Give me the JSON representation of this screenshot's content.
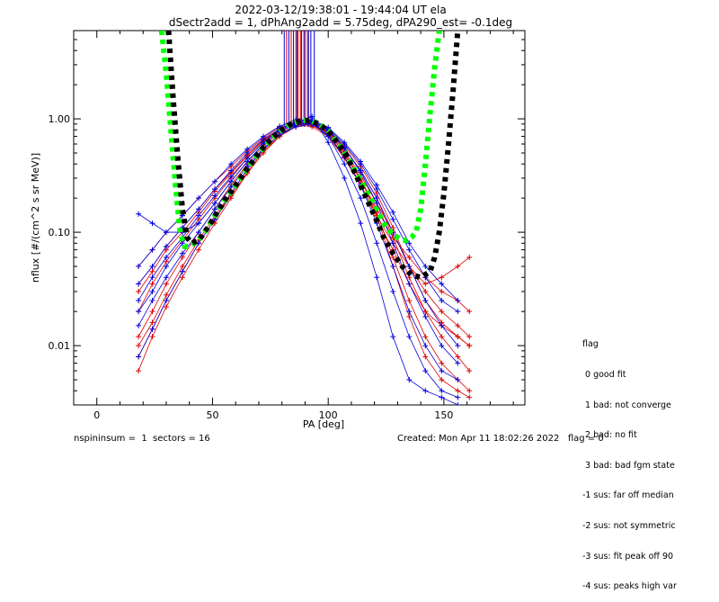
{
  "chart_data": {
    "type": "scatter",
    "title": "2022-03-12/19:38:01 - 19:44:04 UT ela",
    "subtitle": "dSectr2add = 1, dPhAng2add = 5.75deg, dPA290_est=  -0.1deg",
    "xlabel": "PA [deg]",
    "ylabel": "nflux [#/(cm^2 s sr MeV)]",
    "xlim": [
      -10,
      185
    ],
    "ylim": [
      0.003,
      6
    ],
    "yscale": "log",
    "x_ticks": [
      "0",
      "50",
      "100",
      "150"
    ],
    "y_ticks": [
      "0.01",
      "0.10",
      "1.00"
    ],
    "grid": false,
    "colors": {
      "red": "#dd0000",
      "blue": "#0000dd",
      "green": "#00ff00",
      "black": "#000000"
    },
    "series": [
      {
        "color": "red",
        "style": "lines+plus",
        "x": [
          18,
          24,
          30,
          37,
          44,
          51,
          58,
          65,
          72,
          79,
          86,
          93,
          100,
          107,
          114,
          121,
          128,
          135,
          142,
          149,
          156,
          161
        ],
        "traces": [
          [
            0.006,
            0.012,
            0.022,
            0.04,
            0.07,
            0.12,
            0.2,
            0.33,
            0.5,
            0.7,
            0.85,
            0.9,
            0.75,
            0.5,
            0.3,
            0.15,
            0.06,
            0.025,
            0.012,
            0.007,
            0.005,
            0.004
          ],
          [
            0.012,
            0.02,
            0.035,
            0.06,
            0.1,
            0.16,
            0.26,
            0.4,
            0.58,
            0.75,
            0.9,
            0.95,
            0.8,
            0.55,
            0.35,
            0.2,
            0.09,
            0.04,
            0.02,
            0.012,
            0.008,
            0.006
          ],
          [
            0.02,
            0.035,
            0.055,
            0.085,
            0.13,
            0.2,
            0.3,
            0.45,
            0.62,
            0.8,
            0.92,
            0.92,
            0.78,
            0.52,
            0.32,
            0.18,
            0.1,
            0.05,
            0.03,
            0.02,
            0.015,
            0.012
          ],
          [
            0.035,
            0.05,
            0.075,
            0.11,
            0.16,
            0.24,
            0.34,
            0.48,
            0.65,
            0.82,
            0.95,
            0.88,
            0.72,
            0.48,
            0.29,
            0.16,
            0.09,
            0.06,
            0.04,
            0.03,
            0.025,
            0.02
          ],
          [
            0.05,
            0.07,
            0.1,
            0.14,
            0.2,
            0.28,
            0.38,
            0.52,
            0.68,
            0.85,
            0.98,
            0.85,
            0.7,
            0.45,
            0.26,
            0.14,
            0.08,
            0.05,
            0.035,
            0.04,
            0.05,
            0.06
          ],
          [
            0.01,
            0.016,
            0.028,
            0.05,
            0.085,
            0.14,
            0.22,
            0.36,
            0.54,
            0.72,
            0.88,
            0.9,
            0.76,
            0.5,
            0.3,
            0.14,
            0.05,
            0.018,
            0.008,
            0.005,
            0.004,
            0.0035
          ],
          [
            0.03,
            0.045,
            0.07,
            0.1,
            0.15,
            0.23,
            0.33,
            0.47,
            0.64,
            0.8,
            0.93,
            0.91,
            0.74,
            0.46,
            0.27,
            0.13,
            0.07,
            0.035,
            0.02,
            0.015,
            0.012,
            0.01
          ],
          [
            0.008,
            0.014,
            0.025,
            0.045,
            0.08,
            0.13,
            0.21,
            0.34,
            0.52,
            0.7,
            0.86,
            0.93,
            0.8,
            0.58,
            0.38,
            0.22,
            0.11,
            0.05,
            0.025,
            0.016,
            0.012,
            0.01
          ]
        ]
      },
      {
        "color": "blue",
        "style": "lines+plus",
        "x": [
          18,
          24,
          30,
          37,
          44,
          51,
          58,
          65,
          72,
          79,
          86,
          93,
          100,
          107,
          114,
          121,
          128,
          135,
          142,
          149,
          156
        ],
        "traces": [
          [
            0.015,
            0.025,
            0.04,
            0.065,
            0.1,
            0.16,
            0.25,
            0.38,
            0.55,
            0.72,
            0.85,
            0.9,
            0.78,
            0.55,
            0.35,
            0.2,
            0.1,
            0.05,
            0.025,
            0.015,
            0.01
          ],
          [
            0.02,
            0.03,
            0.05,
            0.08,
            0.12,
            0.18,
            0.28,
            0.42,
            0.6,
            0.78,
            0.9,
            0.95,
            0.8,
            0.56,
            0.34,
            0.18,
            0.08,
            0.035,
            0.018,
            0.01,
            0.007
          ],
          [
            0.008,
            0.014,
            0.025,
            0.045,
            0.08,
            0.13,
            0.22,
            0.36,
            0.54,
            0.72,
            0.88,
            0.92,
            0.7,
            0.4,
            0.2,
            0.08,
            0.03,
            0.012,
            0.006,
            0.004,
            0.0035
          ],
          [
            0.035,
            0.05,
            0.075,
            0.11,
            0.16,
            0.24,
            0.35,
            0.5,
            0.66,
            0.82,
            0.94,
            0.96,
            0.82,
            0.6,
            0.4,
            0.24,
            0.13,
            0.07,
            0.04,
            0.025,
            0.02
          ],
          [
            0.05,
            0.07,
            0.1,
            0.14,
            0.2,
            0.28,
            0.4,
            0.54,
            0.7,
            0.86,
            0.98,
            0.98,
            0.84,
            0.62,
            0.42,
            0.26,
            0.15,
            0.08,
            0.05,
            0.035,
            0.025
          ],
          [
            0.025,
            0.04,
            0.06,
            0.09,
            0.14,
            0.21,
            0.31,
            0.45,
            0.62,
            0.8,
            0.92,
            0.9,
            0.72,
            0.46,
            0.26,
            0.12,
            0.05,
            0.02,
            0.01,
            0.006,
            0.005
          ],
          [
            0.145,
            0.12,
            0.1,
            0.1,
            0.12,
            0.18,
            0.28,
            0.42,
            0.6,
            0.78,
            0.9,
            1.05,
            0.62,
            0.3,
            0.12,
            0.04,
            0.012,
            0.005,
            0.004,
            0.0035,
            0.003
          ]
        ]
      },
      {
        "color": "green",
        "style": "thick dotted",
        "name": "",
        "x": [
          28,
          30,
          32,
          34,
          36,
          38,
          40,
          44,
          48,
          52,
          56,
          60,
          64,
          68,
          72,
          76,
          80,
          84,
          88,
          92,
          96,
          100,
          104,
          108,
          112,
          116,
          120,
          124,
          128,
          132,
          134,
          136,
          138,
          140,
          142,
          144,
          146,
          148
        ],
        "y": [
          6,
          2.5,
          0.8,
          0.26,
          0.1,
          0.075,
          0.075,
          0.085,
          0.11,
          0.15,
          0.2,
          0.26,
          0.34,
          0.44,
          0.56,
          0.68,
          0.8,
          0.9,
          0.96,
          0.97,
          0.9,
          0.78,
          0.62,
          0.47,
          0.34,
          0.24,
          0.17,
          0.12,
          0.095,
          0.085,
          0.085,
          0.09,
          0.1,
          0.16,
          0.4,
          1.1,
          2.8,
          6
        ]
      },
      {
        "color": "black",
        "style": "thick dotted",
        "name": "",
        "x": [
          31,
          33,
          35,
          37,
          39,
          41,
          44,
          48,
          52,
          56,
          60,
          64,
          68,
          72,
          76,
          80,
          84,
          88,
          92,
          96,
          100,
          104,
          108,
          112,
          116,
          120,
          124,
          128,
          132,
          136,
          140,
          144,
          146,
          148,
          150,
          152,
          154,
          156
        ],
        "y": [
          6,
          1.5,
          0.45,
          0.16,
          0.09,
          0.08,
          0.085,
          0.11,
          0.15,
          0.2,
          0.26,
          0.34,
          0.44,
          0.56,
          0.68,
          0.8,
          0.9,
          0.96,
          0.97,
          0.9,
          0.78,
          0.62,
          0.47,
          0.32,
          0.21,
          0.14,
          0.09,
          0.065,
          0.05,
          0.042,
          0.04,
          0.045,
          0.06,
          0.1,
          0.22,
          0.6,
          1.8,
          6
        ]
      }
    ],
    "vertical_spike_lines": {
      "red_x": [
        82,
        84,
        86,
        87,
        88,
        90,
        91
      ],
      "blue_x": [
        81,
        83,
        85,
        86.5,
        88.5,
        89.5,
        91.5,
        92.5,
        94
      ],
      "y_from": 0.85,
      "y_to": 6
    }
  },
  "legend": {
    "title": "flag",
    "items": [
      " 0 good fit",
      " 1 bad: not converge",
      " 2 bad: no fit",
      " 3 bad: bad fgm state",
      "-1 sus: far off median",
      "-2 sus: not symmetric",
      "-3 sus: fit peak off 90",
      "-4 sus: peaks high var"
    ]
  },
  "footer": {
    "left": "nspininsum =  1  sectors = 16",
    "right": "Created: Mon Apr 11 18:02:26 2022   flag = 0"
  }
}
